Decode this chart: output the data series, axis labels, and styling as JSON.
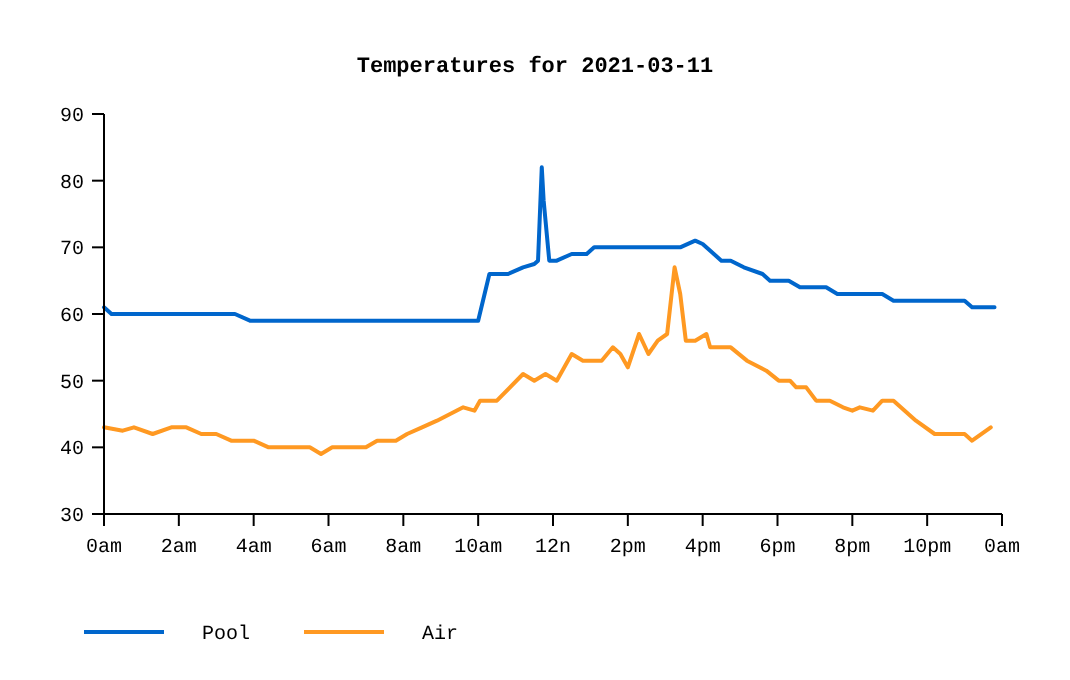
{
  "chart_data": {
    "type": "line",
    "title": "Temperatures for 2021-03-11",
    "xlim": [
      "2021-03-11T00:00",
      "2021-03-12T00:00"
    ],
    "xticks": [
      {
        "value": "2021-03-11T00:00",
        "label": "0am"
      },
      {
        "value": "2021-03-11T02:00",
        "label": "2am"
      },
      {
        "value": "2021-03-11T04:00",
        "label": "4am"
      },
      {
        "value": "2021-03-11T06:00",
        "label": "6am"
      },
      {
        "value": "2021-03-11T08:00",
        "label": "8am"
      },
      {
        "value": "2021-03-11T10:00",
        "label": "10am"
      },
      {
        "value": "2021-03-11T12:00",
        "label": "12n"
      },
      {
        "value": "2021-03-11T14:00",
        "label": "2pm"
      },
      {
        "value": "2021-03-11T16:00",
        "label": "4pm"
      },
      {
        "value": "2021-03-11T18:00",
        "label": "6pm"
      },
      {
        "value": "2021-03-11T20:00",
        "label": "8pm"
      },
      {
        "value": "2021-03-11T22:00",
        "label": "10pm"
      },
      {
        "value": "2021-03-12T00:00",
        "label": "0am"
      }
    ],
    "ylim": [
      30,
      90
    ],
    "yticks": [
      30,
      40,
      50,
      60,
      70,
      80,
      90
    ],
    "legend": "bottom",
    "line_style": "solid",
    "series": [
      {
        "name": "Pool",
        "color": "#0066cc",
        "x": [
          "2021-03-11T00:00",
          "2021-03-11T00:12",
          "2021-03-11T03:30",
          "2021-03-11T03:54",
          "2021-03-11T10:00",
          "2021-03-11T10:18",
          "2021-03-11T10:48",
          "2021-03-11T11:12",
          "2021-03-11T11:30",
          "2021-03-11T11:36",
          "2021-03-11T11:42",
          "2021-03-11T11:45",
          "2021-03-11T11:54",
          "2021-03-11T12:06",
          "2021-03-11T12:30",
          "2021-03-11T12:54",
          "2021-03-11T13:06",
          "2021-03-11T15:24",
          "2021-03-11T15:48",
          "2021-03-11T16:00",
          "2021-03-11T16:30",
          "2021-03-11T16:45",
          "2021-03-11T17:06",
          "2021-03-11T17:36",
          "2021-03-11T17:48",
          "2021-03-11T18:18",
          "2021-03-11T18:36",
          "2021-03-11T19:18",
          "2021-03-11T19:36",
          "2021-03-11T20:48",
          "2021-03-11T21:06",
          "2021-03-11T23:00",
          "2021-03-11T23:12",
          "2021-03-11T23:48"
        ],
        "values": [
          61,
          60,
          60,
          59,
          59,
          66,
          66,
          67,
          67.5,
          68,
          82,
          77,
          68,
          68,
          69,
          69,
          70,
          70,
          71,
          70.5,
          68,
          68,
          67,
          66,
          65,
          65,
          64,
          64,
          63,
          63,
          62,
          62,
          61,
          61
        ]
      },
      {
        "name": "Air",
        "color": "#ff9922",
        "x": [
          "2021-03-11T00:00",
          "2021-03-11T00:30",
          "2021-03-11T00:48",
          "2021-03-11T01:18",
          "2021-03-11T01:48",
          "2021-03-11T02:12",
          "2021-03-11T02:36",
          "2021-03-11T03:00",
          "2021-03-11T03:24",
          "2021-03-11T04:00",
          "2021-03-11T04:24",
          "2021-03-11T05:30",
          "2021-03-11T05:48",
          "2021-03-11T06:06",
          "2021-03-11T07:00",
          "2021-03-11T07:18",
          "2021-03-11T07:48",
          "2021-03-11T08:06",
          "2021-03-11T08:30",
          "2021-03-11T08:54",
          "2021-03-11T09:15",
          "2021-03-11T09:36",
          "2021-03-11T09:54",
          "2021-03-11T10:03",
          "2021-03-11T10:30",
          "2021-03-11T11:12",
          "2021-03-11T11:30",
          "2021-03-11T11:48",
          "2021-03-11T12:06",
          "2021-03-11T12:30",
          "2021-03-11T12:48",
          "2021-03-11T13:18",
          "2021-03-11T13:36",
          "2021-03-11T13:48",
          "2021-03-11T14:00",
          "2021-03-11T14:18",
          "2021-03-11T14:33",
          "2021-03-11T14:48",
          "2021-03-11T15:03",
          "2021-03-11T15:15",
          "2021-03-11T15:24",
          "2021-03-11T15:33",
          "2021-03-11T15:48",
          "2021-03-11T16:06",
          "2021-03-11T16:12",
          "2021-03-11T16:45",
          "2021-03-11T17:11",
          "2021-03-11T17:42",
          "2021-03-11T18:02",
          "2021-03-11T18:20",
          "2021-03-11T18:30",
          "2021-03-11T18:46",
          "2021-03-11T19:02",
          "2021-03-11T19:24",
          "2021-03-11T19:45",
          "2021-03-11T20:00",
          "2021-03-11T20:12",
          "2021-03-11T20:33",
          "2021-03-11T20:48",
          "2021-03-11T21:06",
          "2021-03-11T21:24",
          "2021-03-11T21:42",
          "2021-03-11T22:12",
          "2021-03-11T23:00",
          "2021-03-11T23:12",
          "2021-03-11T23:42"
        ],
        "values": [
          43,
          42.5,
          43,
          42,
          43,
          43,
          42,
          42,
          41,
          41,
          40,
          40,
          39,
          40,
          40,
          41,
          41,
          42,
          43,
          44,
          45,
          46,
          45.5,
          47,
          47,
          51,
          50,
          51,
          50,
          54,
          53,
          53,
          55,
          54,
          52,
          57,
          54,
          56,
          57,
          67,
          63,
          56,
          56,
          57,
          55,
          55,
          53,
          51.5,
          50,
          50,
          49,
          49,
          47,
          47,
          46,
          45.5,
          46,
          45.5,
          47,
          47,
          45.5,
          44,
          42,
          42,
          41,
          43
        ]
      }
    ]
  }
}
